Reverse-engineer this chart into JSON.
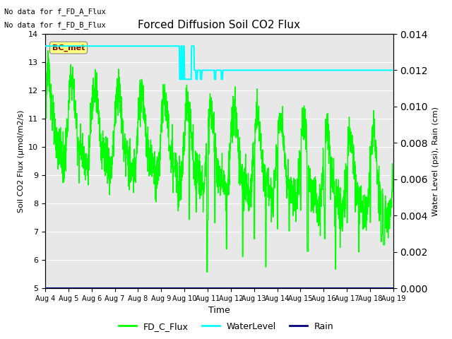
{
  "title": "Forced Diffusion Soil CO2 Flux",
  "xlabel": "Time",
  "ylabel_left": "Soil CO2 Flux (μmol/m2/s)",
  "ylabel_right": "Water Level (psi), Rain (cm)",
  "ylim_left": [
    5.0,
    14.0
  ],
  "ylim_right": [
    0.0,
    0.014
  ],
  "no_data_text1": "No data for f_FD_A_Flux",
  "no_data_text2": "No data for f_FD_B_Flux",
  "bc_met_label": "BC_met",
  "bc_met_color": "#8B0000",
  "bc_met_bg": "#FFFF80",
  "background_color": "#E8E8E8",
  "grid_color": "white",
  "x_tick_labels": [
    "Aug 4",
    "Aug 5",
    "Aug 6",
    "Aug 7",
    "Aug 8",
    "Aug 9",
    "Aug 10",
    "Aug 11",
    "Aug 12",
    "Aug 13",
    "Aug 14",
    "Aug 15",
    "Aug 16",
    "Aug 17",
    "Aug 18",
    "Aug 19"
  ],
  "flux_color": "#00FF00",
  "water_color": "#00FFFF",
  "rain_color": "#000080",
  "flux_linewidth": 1.0,
  "water_linewidth": 1.5,
  "rain_linewidth": 1.5,
  "water_high": 0.01333,
  "water_low": 0.012,
  "rain_val": 0.0
}
